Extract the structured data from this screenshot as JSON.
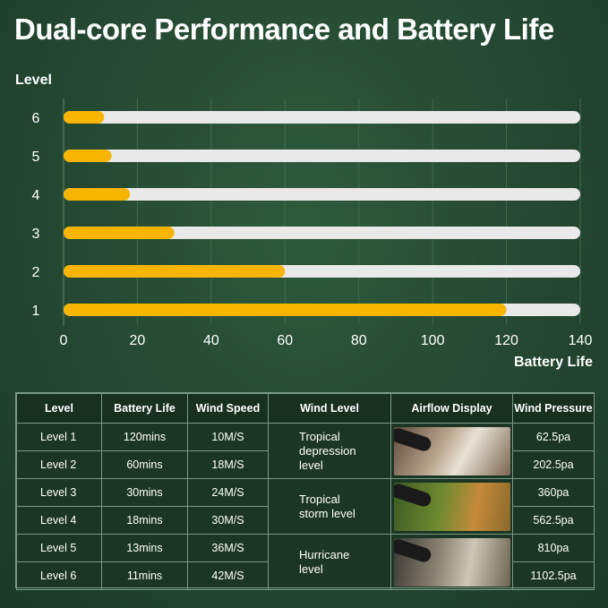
{
  "title": "Dual-core Performance and Battery Life",
  "chart_data": {
    "type": "bar",
    "orientation": "horizontal",
    "categories": [
      "1",
      "2",
      "3",
      "4",
      "5",
      "6"
    ],
    "values": [
      120,
      60,
      30,
      18,
      13,
      11
    ],
    "xlabel": "Battery Life",
    "ylabel": "Level",
    "xlim": [
      0,
      140
    ],
    "xticks": [
      "0",
      "20",
      "40",
      "60",
      "80",
      "100",
      "120",
      "140"
    ],
    "grid": true,
    "colors": {
      "bar": "#f7b500",
      "track": "#e9e9e9",
      "grid": "#3f6a4c"
    }
  },
  "table": {
    "headers": [
      "Level",
      "Battery Life",
      "Wind Speed",
      "Wind Level",
      "Airflow Display",
      "Wind Pressure"
    ],
    "rows": [
      {
        "level": "Level 1",
        "battery": "120mins",
        "speed": "10M/S",
        "pressure": "62.5pa"
      },
      {
        "level": "Level 2",
        "battery": "60mins",
        "speed": "18M/S",
        "pressure": "202.5pa"
      },
      {
        "level": "Level 3",
        "battery": "30mins",
        "speed": "24M/S",
        "pressure": "360pa"
      },
      {
        "level": "Level 4",
        "battery": "18mins",
        "speed": "30M/S",
        "pressure": "562.5pa"
      },
      {
        "level": "Level 5",
        "battery": "13mins",
        "speed": "36M/S",
        "pressure": "810pa"
      },
      {
        "level": "Level 6",
        "battery": "11mins",
        "speed": "42M/S",
        "pressure": "1102.5pa"
      }
    ],
    "wind_levels": [
      {
        "lines": [
          "Tropical",
          "depression",
          "level"
        ],
        "image": "debris-blowing-photo"
      },
      {
        "lines": [
          "Tropical",
          "storm level"
        ],
        "image": "leaves-blowing-photo"
      },
      {
        "lines": [
          "Hurricane",
          "level"
        ],
        "image": "dust-blowing-photo"
      }
    ]
  }
}
